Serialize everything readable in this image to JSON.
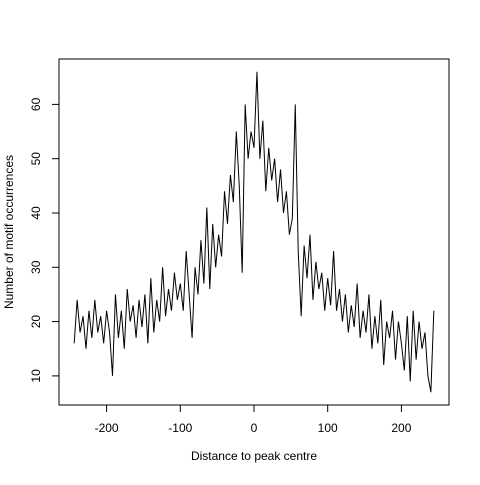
{
  "chart_data": {
    "type": "line",
    "xlabel": "Distance to peak centre",
    "ylabel": "Number of motif occurrences",
    "x": [
      -244,
      -240,
      -236,
      -232,
      -228,
      -224,
      -220,
      -216,
      -212,
      -208,
      -204,
      -200,
      -196,
      -192,
      -188,
      -184,
      -180,
      -176,
      -172,
      -168,
      -164,
      -160,
      -156,
      -152,
      -148,
      -144,
      -140,
      -136,
      -132,
      -128,
      -124,
      -120,
      -116,
      -112,
      -108,
      -104,
      -100,
      -96,
      -92,
      -88,
      -84,
      -80,
      -76,
      -72,
      -68,
      -64,
      -60,
      -56,
      -52,
      -48,
      -44,
      -40,
      -36,
      -32,
      -28,
      -24,
      -20,
      -16,
      -12,
      -8,
      -4,
      0,
      4,
      8,
      12,
      16,
      20,
      24,
      28,
      32,
      36,
      40,
      44,
      48,
      52,
      56,
      60,
      64,
      68,
      72,
      76,
      80,
      84,
      88,
      92,
      96,
      100,
      104,
      108,
      112,
      116,
      120,
      124,
      128,
      132,
      136,
      140,
      144,
      148,
      152,
      156,
      160,
      164,
      168,
      172,
      176,
      180,
      184,
      188,
      192,
      196,
      200,
      204,
      208,
      212,
      216,
      220,
      224,
      228,
      232,
      236,
      240,
      244
    ],
    "values": [
      16,
      24,
      18,
      21,
      15,
      22,
      17,
      24,
      18,
      21,
      16,
      22,
      18,
      10,
      25,
      17,
      22,
      15,
      26,
      20,
      23,
      17,
      24,
      19,
      25,
      16,
      28,
      18,
      24,
      20,
      30,
      21,
      26,
      22,
      29,
      24,
      27,
      22,
      33,
      25,
      17,
      30,
      25,
      35,
      27,
      41,
      26,
      38,
      30,
      36,
      32,
      44,
      38,
      47,
      42,
      55,
      45,
      29,
      60,
      50,
      55,
      52,
      66,
      50,
      57,
      44,
      52,
      46,
      50,
      42,
      48,
      40,
      44,
      36,
      39,
      60,
      33,
      21,
      34,
      28,
      36,
      24,
      31,
      26,
      29,
      22,
      28,
      23,
      33,
      22,
      26,
      20,
      25,
      18,
      23,
      19,
      27,
      17,
      22,
      18,
      25,
      15,
      21,
      16,
      24,
      12,
      20,
      17,
      22,
      13,
      20,
      16,
      11,
      21,
      9,
      22,
      13,
      20,
      15,
      18,
      10,
      7,
      22
    ],
    "color": "#000000",
    "xlim": [
      -264.6,
      264.6
    ],
    "xticks": [
      -200,
      -100,
      0,
      100,
      200
    ],
    "ylim": [
      4.64,
      68.36
    ],
    "yticks": [
      10,
      20,
      30,
      40,
      50,
      60
    ]
  }
}
